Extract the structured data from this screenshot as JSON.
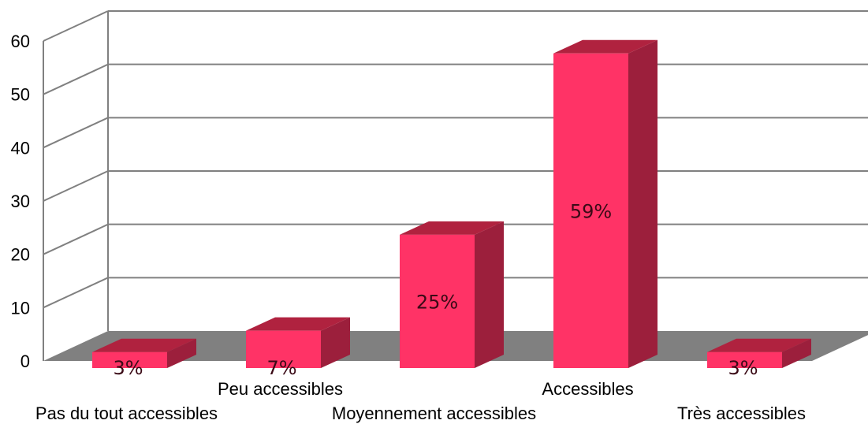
{
  "chart_data": {
    "type": "bar",
    "three_d": true,
    "title": "",
    "xlabel": "",
    "ylabel": "",
    "categories": [
      "Pas du tout accessibles",
      "Peu accessibles",
      "Moyennement accessibles",
      "Accessibles",
      "Très accessibles"
    ],
    "series": [
      {
        "values": [
          3,
          7,
          25,
          59,
          3
        ],
        "data_labels": [
          "3%",
          "7%",
          "25%",
          "59%",
          "3%"
        ]
      }
    ],
    "ylim": [
      0,
      60
    ],
    "yticks": [
      0,
      10,
      20,
      30,
      40,
      50,
      60
    ],
    "grid": true,
    "legend": "none",
    "colors": {
      "bar_front": "#ff3366",
      "bar_side": "#9c1f3c",
      "bar_top": "#b0223f",
      "gridline": "#808080",
      "floor": "#808080"
    }
  }
}
